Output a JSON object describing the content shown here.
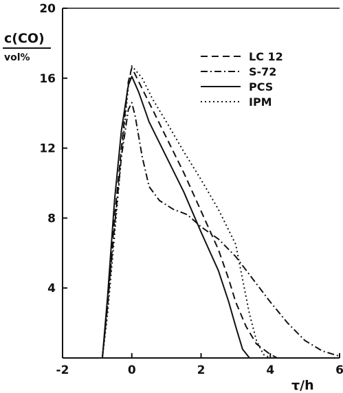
{
  "chart_data": {
    "type": "line",
    "title": "",
    "ylabel_top": "c(CO)",
    "ylabel_bottom": "vol%",
    "xlabel": "τ/h",
    "xlim": [
      -2,
      6
    ],
    "ylim": [
      0,
      20
    ],
    "x_ticks": [
      "-2",
      "0",
      "2",
      "4",
      "6"
    ],
    "y_ticks": [
      "4",
      "8",
      "12",
      "16",
      "20"
    ],
    "grid": false,
    "legend_position": "top-right",
    "series": [
      {
        "name": "LC 12",
        "dash": "dashed",
        "points": [
          [
            -0.85,
            0
          ],
          [
            -0.7,
            3
          ],
          [
            -0.5,
            8
          ],
          [
            -0.3,
            12
          ],
          [
            -0.1,
            15.8
          ],
          [
            0.0,
            16.6
          ],
          [
            0.2,
            15.8
          ],
          [
            0.6,
            14.2
          ],
          [
            1.0,
            12.6
          ],
          [
            1.5,
            10.6
          ],
          [
            2.0,
            8.4
          ],
          [
            2.5,
            6.2
          ],
          [
            2.8,
            4.5
          ],
          [
            3.0,
            3.2
          ],
          [
            3.3,
            1.8
          ],
          [
            3.6,
            0.8
          ],
          [
            4.0,
            0.2
          ],
          [
            4.2,
            0
          ]
        ]
      },
      {
        "name": "S-72",
        "dash": "dash-dot",
        "points": [
          [
            -0.85,
            0
          ],
          [
            -0.7,
            3
          ],
          [
            -0.5,
            7.5
          ],
          [
            -0.3,
            11.5
          ],
          [
            -0.1,
            14.2
          ],
          [
            0.0,
            14.6
          ],
          [
            0.1,
            13.8
          ],
          [
            0.3,
            11.5
          ],
          [
            0.5,
            9.8
          ],
          [
            0.8,
            9.0
          ],
          [
            1.2,
            8.5
          ],
          [
            1.6,
            8.2
          ],
          [
            2.0,
            7.5
          ],
          [
            2.5,
            6.8
          ],
          [
            3.0,
            5.8
          ],
          [
            3.5,
            4.5
          ],
          [
            4.0,
            3.2
          ],
          [
            4.5,
            2.0
          ],
          [
            5.0,
            1.0
          ],
          [
            5.5,
            0.4
          ],
          [
            6.0,
            0.1
          ]
        ]
      },
      {
        "name": "PCS",
        "dash": "solid",
        "points": [
          [
            -0.85,
            0
          ],
          [
            -0.7,
            3.5
          ],
          [
            -0.5,
            9
          ],
          [
            -0.3,
            13
          ],
          [
            -0.1,
            15.6
          ],
          [
            0.0,
            16.1
          ],
          [
            0.2,
            15.2
          ],
          [
            0.5,
            13.5
          ],
          [
            1.0,
            11.5
          ],
          [
            1.5,
            9.5
          ],
          [
            2.0,
            7.2
          ],
          [
            2.5,
            5.0
          ],
          [
            2.8,
            3.2
          ],
          [
            3.0,
            1.8
          ],
          [
            3.2,
            0.5
          ],
          [
            3.4,
            0
          ]
        ]
      },
      {
        "name": "IPM",
        "dash": "dotted",
        "points": [
          [
            -0.85,
            0
          ],
          [
            -0.7,
            2.5
          ],
          [
            -0.5,
            7
          ],
          [
            -0.3,
            11.5
          ],
          [
            -0.1,
            15.5
          ],
          [
            0.0,
            16.7
          ],
          [
            0.3,
            16.0
          ],
          [
            0.6,
            14.8
          ],
          [
            1.0,
            13.5
          ],
          [
            1.5,
            11.8
          ],
          [
            2.0,
            10.2
          ],
          [
            2.5,
            8.5
          ],
          [
            3.0,
            6.5
          ],
          [
            3.2,
            4.5
          ],
          [
            3.4,
            2.5
          ],
          [
            3.6,
            1.0
          ],
          [
            3.8,
            0.2
          ],
          [
            4.0,
            0
          ]
        ]
      }
    ]
  }
}
